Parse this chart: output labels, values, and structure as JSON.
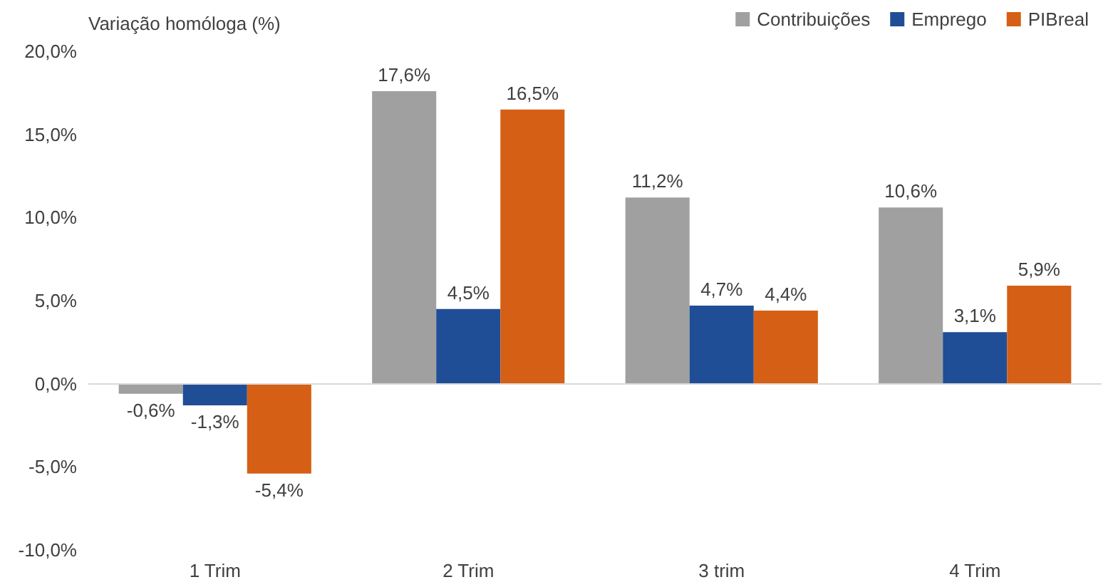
{
  "chart_data": {
    "type": "bar",
    "ylabel": "Variação homóloga (%)",
    "categories": [
      "1 Trim",
      "2 Trim",
      "3 trim",
      "4 Trim"
    ],
    "series": [
      {
        "name": "Contribuições",
        "color": "#a0a0a0",
        "values": [
          -0.6,
          17.6,
          11.2,
          10.6
        ],
        "value_labels": [
          "-0,6%",
          "17,6%",
          "11,2%",
          "10,6%"
        ]
      },
      {
        "name": "Emprego",
        "color": "#1f4e96",
        "values": [
          -1.3,
          4.5,
          4.7,
          3.1
        ],
        "value_labels": [
          "-1,3%",
          "4,5%",
          "4,7%",
          "3,1%"
        ]
      },
      {
        "name": "PIBreal",
        "color": "#d55f14",
        "values": [
          -5.4,
          16.5,
          4.4,
          5.9
        ],
        "value_labels": [
          "-5,4%",
          "16,5%",
          "4,4%",
          "5,9%"
        ]
      }
    ],
    "ylim": [
      -10,
      20
    ],
    "yticks": [
      {
        "value": -10,
        "label": "-10,0%"
      },
      {
        "value": -5,
        "label": "-5,0%"
      },
      {
        "value": 0,
        "label": "0,0%"
      },
      {
        "value": 5,
        "label": "5,0%"
      },
      {
        "value": 10,
        "label": "10,0%"
      },
      {
        "value": 15,
        "label": "15,0%"
      },
      {
        "value": 20,
        "label": "20,0%"
      }
    ],
    "ref_lines": [
      {
        "axis": "y",
        "value": 0,
        "color": "#d9d9d9"
      }
    ],
    "grid": false,
    "legend": "top right"
  }
}
